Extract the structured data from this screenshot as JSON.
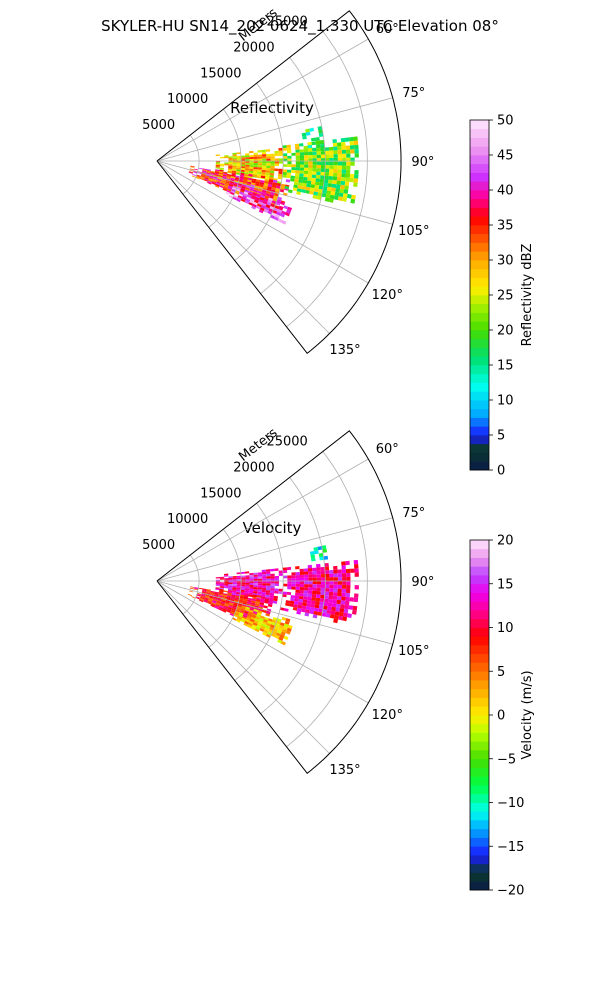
{
  "suptitle": "SKYLER-HU  SN14_202  0624_1.330 UTC Elevation 08°",
  "chart_data": [
    {
      "type": "heatmap",
      "projection": "polar-sector",
      "title": "Reflectivity",
      "radial_label": "Meters",
      "radial_ticks": [
        5000,
        10000,
        15000,
        20000,
        25000
      ],
      "radial_tick_labels": [
        "5000",
        "10000",
        "15000",
        "20000",
        "25000"
      ],
      "r_range_m": [
        0,
        29000
      ],
      "azimuth_range_deg": [
        52,
        142
      ],
      "azimuth_ticks": [
        "60°",
        "75°",
        "90°",
        "105°",
        "120°",
        "135°"
      ],
      "grid": true,
      "colorbar": {
        "label": "Reflectivity dBZ",
        "range": [
          0,
          50
        ],
        "ticks": [
          "0",
          "5",
          "10",
          "15",
          "20",
          "25",
          "30",
          "35",
          "40",
          "45",
          "50"
        ]
      },
      "echo_regions": [
        {
          "az_deg": [
            84,
            101
          ],
          "r_m": [
            7000,
            15000
          ],
          "dbz": 28
        },
        {
          "az_deg": [
            98,
            113
          ],
          "r_m": [
            4000,
            16000
          ],
          "dbz": 36
        },
        {
          "az_deg": [
            108,
            116
          ],
          "r_m": [
            9000,
            17000
          ],
          "dbz": 42
        },
        {
          "az_deg": [
            83,
            103
          ],
          "r_m": [
            15000,
            24000
          ],
          "dbz": 22
        },
        {
          "az_deg": [
            78,
            86
          ],
          "r_m": [
            17500,
            20000
          ],
          "dbz": 18
        }
      ]
    },
    {
      "type": "heatmap",
      "projection": "polar-sector",
      "title": "Velocity",
      "radial_label": "Meters",
      "radial_ticks": [
        5000,
        10000,
        15000,
        20000,
        25000
      ],
      "radial_tick_labels": [
        "5000",
        "10000",
        "15000",
        "20000",
        "25000"
      ],
      "r_range_m": [
        0,
        29000
      ],
      "azimuth_range_deg": [
        52,
        142
      ],
      "azimuth_ticks": [
        "60°",
        "75°",
        "90°",
        "105°",
        "120°",
        "135°"
      ],
      "grid": true,
      "colorbar": {
        "label": "Velocity (m/s)",
        "range": [
          -20,
          20
        ],
        "ticks": [
          "−20",
          "−15",
          "−10",
          "−5",
          "0",
          "5",
          "10",
          "15",
          "20"
        ]
      },
      "echo_regions": [
        {
          "az_deg": [
            84,
            100
          ],
          "r_m": [
            7000,
            15000
          ],
          "ms": 13
        },
        {
          "az_deg": [
            98,
            114
          ],
          "r_m": [
            4000,
            14000
          ],
          "ms": 9
        },
        {
          "az_deg": [
            106,
            116
          ],
          "r_m": [
            10000,
            17000
          ],
          "ms": 2
        },
        {
          "az_deg": [
            84,
            103
          ],
          "r_m": [
            15000,
            24000
          ],
          "ms": 12
        },
        {
          "az_deg": [
            78,
            82
          ],
          "r_m": [
            18500,
            20500
          ],
          "ms": -10
        }
      ]
    }
  ]
}
